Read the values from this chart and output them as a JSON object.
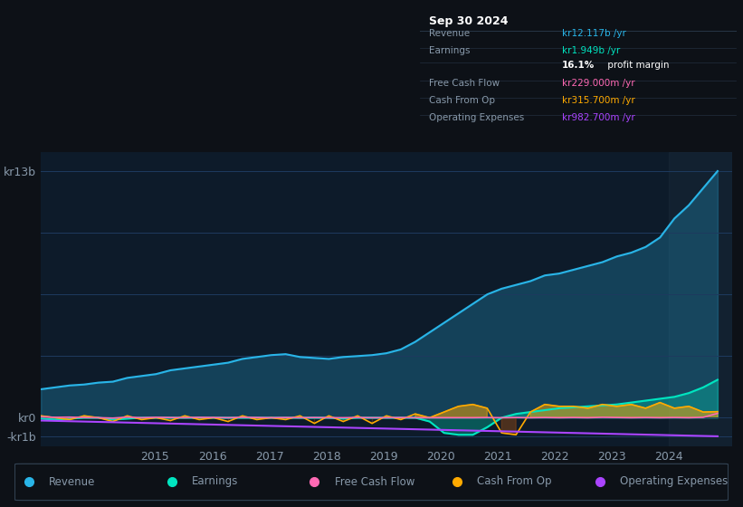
{
  "bg_outer": "#0d1117",
  "bg_chart": "#0d1b2a",
  "grid_color": "#1e3a5f",
  "text_color": "#8899aa",
  "colors": {
    "revenue": "#29b5e8",
    "earnings": "#00e5c0",
    "free_cash_flow": "#ff69b4",
    "cash_from_op": "#ffaa00",
    "operating_expenses": "#aa44ff"
  },
  "legend": [
    {
      "label": "Revenue",
      "color": "#29b5e8"
    },
    {
      "label": "Earnings",
      "color": "#00e5c0"
    },
    {
      "label": "Free Cash Flow",
      "color": "#ff69b4"
    },
    {
      "label": "Cash From Op",
      "color": "#ffaa00"
    },
    {
      "label": "Operating Expenses",
      "color": "#aa44ff"
    }
  ]
}
